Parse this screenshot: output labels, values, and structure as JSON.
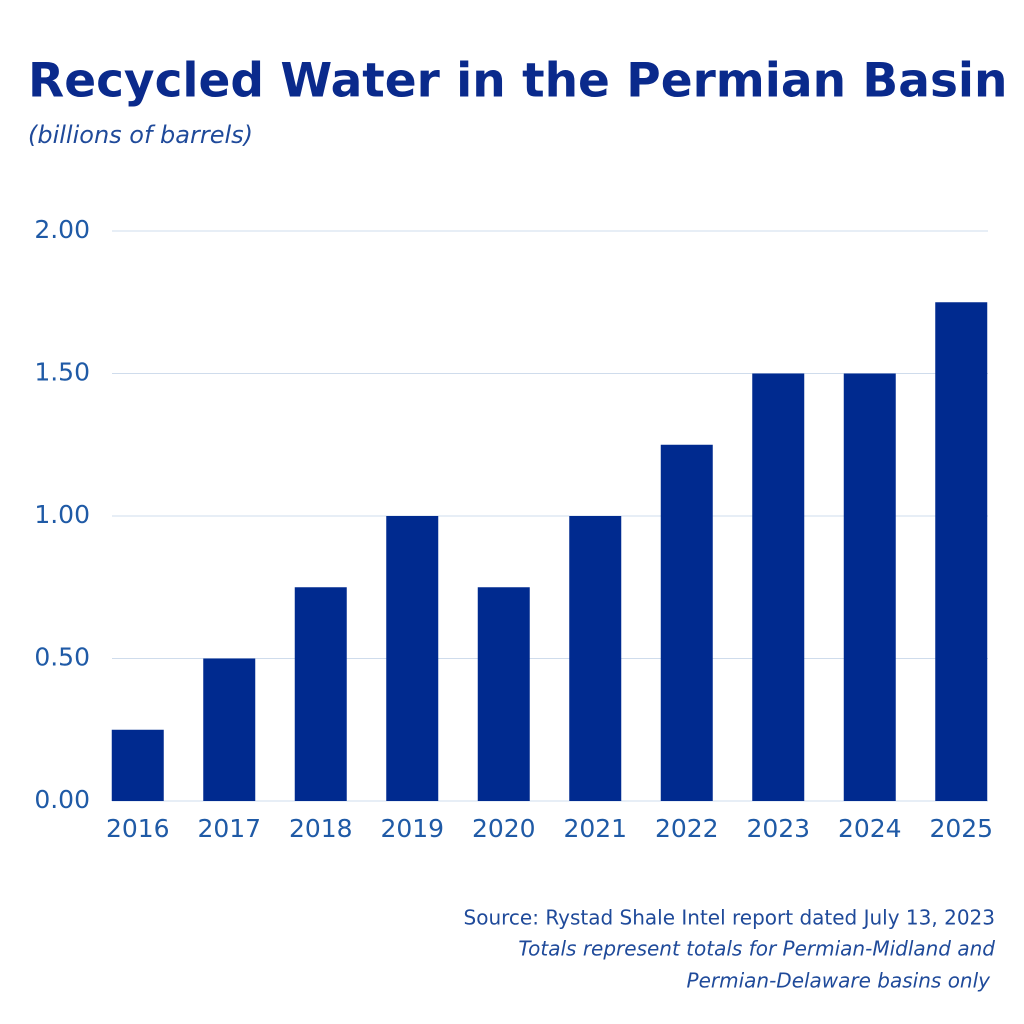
{
  "chart_data": {
    "type": "bar",
    "title": "Recycled Water in the Permian Basin",
    "subtitle": "(billions of barrels)",
    "categories": [
      "2016",
      "2017",
      "2018",
      "2019",
      "2020",
      "2021",
      "2022",
      "2023",
      "2024",
      "2025"
    ],
    "values": [
      0.25,
      0.5,
      0.75,
      1.0,
      0.75,
      1.0,
      1.25,
      1.5,
      1.5,
      1.75
    ],
    "color": "#002a8f",
    "ylim": [
      0,
      2
    ],
    "yticks": [
      {
        "value": 0,
        "label": "0.00"
      },
      {
        "value": 0.5,
        "label": "0.50"
      },
      {
        "value": 1,
        "label": "1.00"
      },
      {
        "value": 1.5,
        "label": "1.50"
      },
      {
        "value": 2,
        "label": "2.00"
      }
    ],
    "grid": true,
    "source": "Source: Rystad Shale Intel report dated July 13, 2023",
    "notes": [
      "Totals represent totals for Permian-Midland and",
      "Permian-Delaware basins only"
    ]
  }
}
